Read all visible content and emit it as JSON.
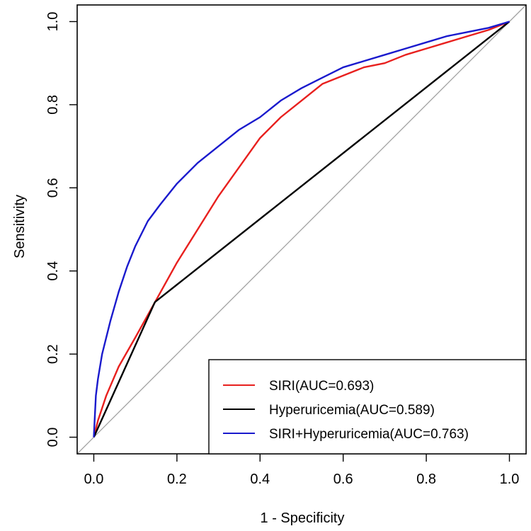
{
  "chart_data": {
    "type": "line",
    "title": "",
    "xlabel": "1 - Specificity",
    "ylabel": "Sensitivity",
    "xlim": [
      -0.04,
      1.04
    ],
    "ylim": [
      -0.04,
      1.04
    ],
    "x_ticks": [
      "0.0",
      "0.2",
      "0.4",
      "0.6",
      "0.8",
      "1.0"
    ],
    "y_ticks": [
      "0.0",
      "0.2",
      "0.4",
      "0.6",
      "0.8",
      "1.0"
    ],
    "grid": false,
    "diagonal_reference": true,
    "legend_position": "bottom-right",
    "series": [
      {
        "name": "SIRI(AUC=0.693)",
        "color": "#e8201e",
        "x": [
          0,
          0.01,
          0.03,
          0.06,
          0.1,
          0.15,
          0.2,
          0.25,
          0.3,
          0.35,
          0.4,
          0.45,
          0.5,
          0.55,
          0.6,
          0.65,
          0.7,
          0.75,
          0.8,
          0.85,
          0.9,
          0.95,
          1.0
        ],
        "y": [
          0,
          0.04,
          0.1,
          0.17,
          0.24,
          0.33,
          0.42,
          0.5,
          0.58,
          0.65,
          0.72,
          0.77,
          0.81,
          0.85,
          0.87,
          0.89,
          0.9,
          0.92,
          0.935,
          0.95,
          0.965,
          0.98,
          1.0
        ]
      },
      {
        "name": "Hyperuricemia(AUC=0.589)",
        "color": "#000000",
        "x": [
          0,
          0.147,
          1.0
        ],
        "y": [
          0,
          0.325,
          1.0
        ]
      },
      {
        "name": "SIRI+Hyperuricemia(AUC=0.763)",
        "color": "#1a1acd",
        "x": [
          0,
          0.005,
          0.01,
          0.02,
          0.04,
          0.06,
          0.08,
          0.1,
          0.13,
          0.16,
          0.2,
          0.25,
          0.3,
          0.35,
          0.4,
          0.45,
          0.5,
          0.55,
          0.6,
          0.65,
          0.7,
          0.75,
          0.8,
          0.85,
          0.9,
          0.95,
          1.0
        ],
        "y": [
          0,
          0.1,
          0.14,
          0.2,
          0.28,
          0.35,
          0.41,
          0.46,
          0.52,
          0.56,
          0.61,
          0.66,
          0.7,
          0.74,
          0.77,
          0.81,
          0.84,
          0.865,
          0.89,
          0.905,
          0.92,
          0.935,
          0.95,
          0.965,
          0.975,
          0.985,
          1.0
        ]
      }
    ]
  }
}
